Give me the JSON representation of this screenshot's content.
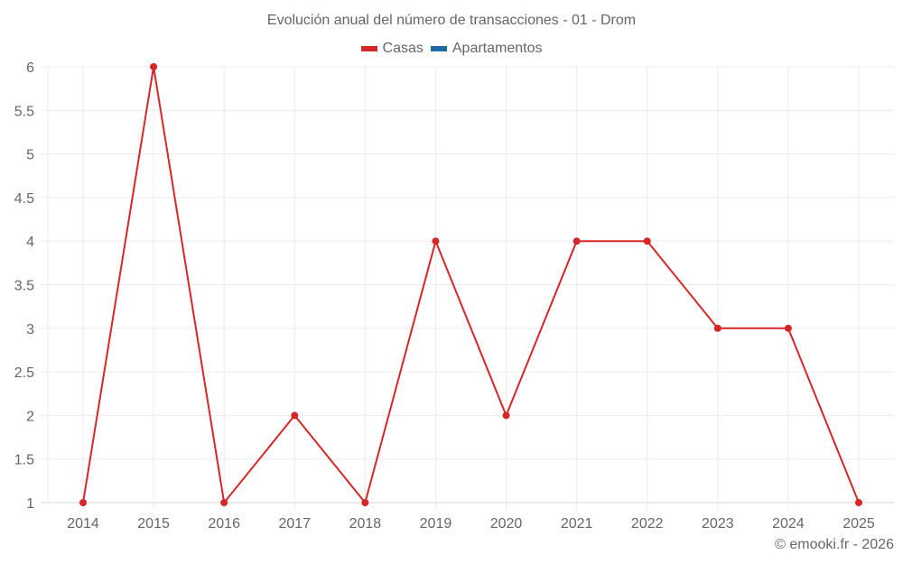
{
  "title": "Evolución anual del número de transacciones - 01 - Drom",
  "legend": [
    {
      "label": "Casas",
      "color": "#d62728",
      "icon": "legend-swatch"
    },
    {
      "label": "Apartamentos",
      "color": "#1f6aa5",
      "icon": "legend-swatch"
    }
  ],
  "credit": "© emooki.fr - 2026",
  "colors": {
    "line": "#d62728",
    "grid": "#ebebeb",
    "axis": "#d9d9d9",
    "text": "#666666"
  },
  "chart_data": {
    "type": "line",
    "title": "Evolución anual del número de transacciones - 01 - Drom",
    "xlabel": "",
    "ylabel": "",
    "categories": [
      "2014",
      "2015",
      "2016",
      "2017",
      "2018",
      "2019",
      "2020",
      "2021",
      "2022",
      "2023",
      "2024",
      "2025"
    ],
    "series": [
      {
        "name": "Casas",
        "color": "#d62728",
        "values": [
          1,
          6,
          1,
          2,
          1,
          4,
          2,
          4,
          4,
          3,
          3,
          1
        ]
      },
      {
        "name": "Apartamentos",
        "color": "#1f6aa5",
        "values": []
      }
    ],
    "ylim": [
      1,
      6
    ],
    "yticks": [
      "1",
      "1.5",
      "2",
      "2.5",
      "3",
      "3.5",
      "4",
      "4.5",
      "5",
      "5.5",
      "6"
    ],
    "grid": true,
    "legend_position": "top"
  }
}
